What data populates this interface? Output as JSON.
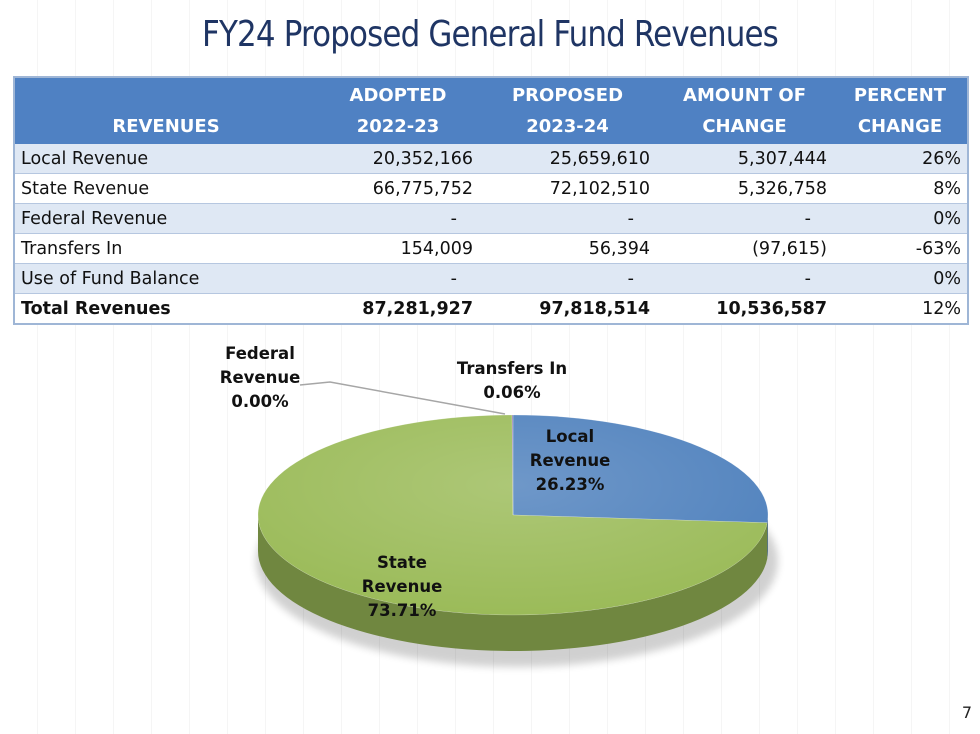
{
  "title": "FY24 Proposed General Fund Revenues",
  "page_number": "7",
  "table": {
    "headers": [
      {
        "line1": "",
        "line2": "REVENUES"
      },
      {
        "line1": "ADOPTED",
        "line2": "2022-23"
      },
      {
        "line1": "PROPOSED",
        "line2": "2023-24"
      },
      {
        "line1": "AMOUNT OF",
        "line2": "CHANGE"
      },
      {
        "line1": "PERCENT",
        "line2": "CHANGE"
      }
    ],
    "rows": [
      [
        "Local Revenue",
        "20,352,166",
        "25,659,610",
        "5,307,444",
        "26%"
      ],
      [
        "State Revenue",
        "66,775,752",
        "72,102,510",
        "5,326,758",
        "8%"
      ],
      [
        "Federal Revenue",
        "-",
        "-",
        "-",
        "0%"
      ],
      [
        "Transfers In",
        "154,009",
        "56,394",
        "(97,615)",
        "-63%"
      ],
      [
        "Use of Fund Balance",
        "-",
        "-",
        "-",
        "0%"
      ],
      [
        "Total Revenues",
        "87,281,927",
        "97,818,514",
        "10,536,587",
        "12%"
      ]
    ]
  },
  "chart_data": {
    "type": "pie",
    "categories": [
      "Local Revenue",
      "State Revenue",
      "Federal Revenue",
      "Transfers In"
    ],
    "values": [
      26.23,
      73.71,
      0.0,
      0.06
    ],
    "labels": [
      {
        "name_line1": "Local",
        "name_line2": "Revenue",
        "pct": "26.23%"
      },
      {
        "name_line1": "State",
        "name_line2": "Revenue",
        "pct": "73.71%"
      },
      {
        "name_line1": "Federal",
        "name_line2": "Revenue",
        "pct": "0.00%"
      },
      {
        "name_line1": "Transfers In",
        "name_line2": "",
        "pct": "0.06%"
      }
    ],
    "colors": [
      "#4f81bd",
      "#9bbb59",
      "#c0504d",
      "#8064a2"
    ],
    "style": "3d"
  }
}
